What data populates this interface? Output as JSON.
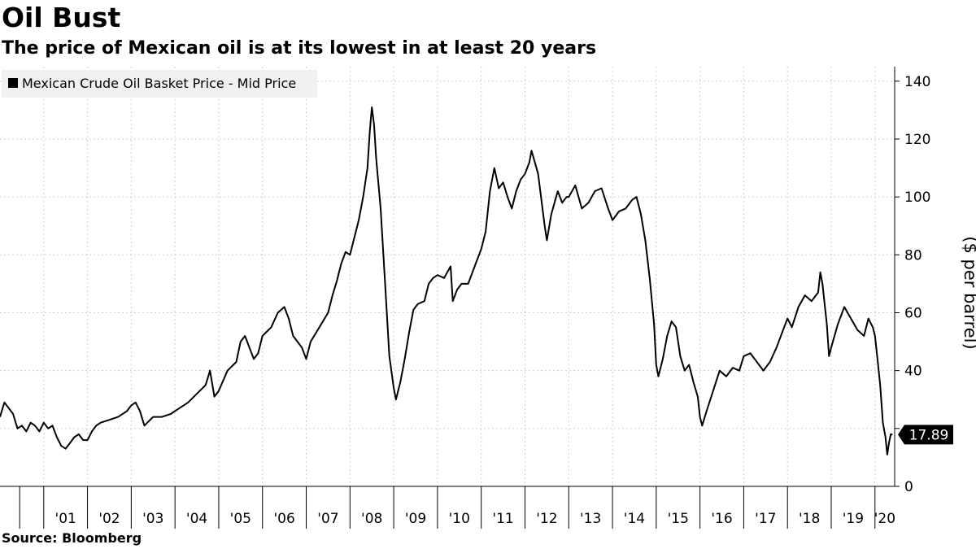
{
  "title": "Oil Bust",
  "subtitle": "The price of Mexican oil is at its lowest in at least 20 years",
  "source": "Source: Bloomberg",
  "chart_data": {
    "type": "line",
    "ylabel": "($ per barrel)",
    "ylim": [
      0,
      145
    ],
    "yticks": [
      0,
      40,
      60,
      80,
      100,
      120,
      140
    ],
    "xlim": [
      2000.0,
      2020.45
    ],
    "xticks": [
      {
        "label": "'01",
        "x": 2001.0
      },
      {
        "label": "'02",
        "x": 2002.0
      },
      {
        "label": "'03",
        "x": 2003.0
      },
      {
        "label": "'04",
        "x": 2004.0
      },
      {
        "label": "'05",
        "x": 2005.0
      },
      {
        "label": "'06",
        "x": 2006.0
      },
      {
        "label": "'07",
        "x": 2007.0
      },
      {
        "label": "'08",
        "x": 2008.0
      },
      {
        "label": "'09",
        "x": 2009.0
      },
      {
        "label": "'10",
        "x": 2010.0
      },
      {
        "label": "'11",
        "x": 2011.0
      },
      {
        "label": "'12",
        "x": 2012.0
      },
      {
        "label": "'13",
        "x": 2013.0
      },
      {
        "label": "'14",
        "x": 2014.0
      },
      {
        "label": "'15",
        "x": 2015.0
      },
      {
        "label": "'16",
        "x": 2016.0
      },
      {
        "label": "'17",
        "x": 2017.0
      },
      {
        "label": "'18",
        "x": 2018.0
      },
      {
        "label": "'19",
        "x": 2019.0
      },
      {
        "label": "'20",
        "x": 2020.0
      }
    ],
    "series": [
      {
        "name": "Mexican Crude Oil Basket Price - Mid Price",
        "color": "#000000",
        "last_value_label": "17.89",
        "points": [
          [
            2000.0,
            24
          ],
          [
            2000.1,
            29
          ],
          [
            2000.2,
            27
          ],
          [
            2000.3,
            25
          ],
          [
            2000.4,
            20
          ],
          [
            2000.5,
            21
          ],
          [
            2000.6,
            19
          ],
          [
            2000.7,
            22
          ],
          [
            2000.8,
            21
          ],
          [
            2000.9,
            19
          ],
          [
            2001.0,
            22
          ],
          [
            2001.1,
            20
          ],
          [
            2001.2,
            21
          ],
          [
            2001.3,
            17
          ],
          [
            2001.4,
            14
          ],
          [
            2001.5,
            13
          ],
          [
            2001.6,
            15
          ],
          [
            2001.7,
            17
          ],
          [
            2001.8,
            18
          ],
          [
            2001.9,
            16
          ],
          [
            2002.0,
            16
          ],
          [
            2002.1,
            19
          ],
          [
            2002.2,
            21
          ],
          [
            2002.3,
            22
          ],
          [
            2002.5,
            23
          ],
          [
            2002.7,
            24
          ],
          [
            2002.9,
            26
          ],
          [
            2003.0,
            28
          ],
          [
            2003.1,
            29
          ],
          [
            2003.2,
            26
          ],
          [
            2003.3,
            21
          ],
          [
            2003.5,
            24
          ],
          [
            2003.7,
            24
          ],
          [
            2003.9,
            25
          ],
          [
            2004.1,
            27
          ],
          [
            2004.3,
            29
          ],
          [
            2004.5,
            32
          ],
          [
            2004.7,
            35
          ],
          [
            2004.8,
            40
          ],
          [
            2004.9,
            31
          ],
          [
            2005.0,
            33
          ],
          [
            2005.2,
            40
          ],
          [
            2005.4,
            43
          ],
          [
            2005.5,
            50
          ],
          [
            2005.6,
            52
          ],
          [
            2005.7,
            48
          ],
          [
            2005.8,
            44
          ],
          [
            2005.9,
            46
          ],
          [
            2006.0,
            52
          ],
          [
            2006.2,
            55
          ],
          [
            2006.35,
            60
          ],
          [
            2006.5,
            62
          ],
          [
            2006.6,
            58
          ],
          [
            2006.7,
            52
          ],
          [
            2006.8,
            50
          ],
          [
            2006.9,
            48
          ],
          [
            2007.0,
            44
          ],
          [
            2007.1,
            50
          ],
          [
            2007.3,
            55
          ],
          [
            2007.5,
            60
          ],
          [
            2007.6,
            66
          ],
          [
            2007.7,
            71
          ],
          [
            2007.8,
            77
          ],
          [
            2007.9,
            81
          ],
          [
            2008.0,
            80
          ],
          [
            2008.1,
            86
          ],
          [
            2008.2,
            92
          ],
          [
            2008.3,
            100
          ],
          [
            2008.4,
            110
          ],
          [
            2008.45,
            122
          ],
          [
            2008.5,
            131
          ],
          [
            2008.55,
            125
          ],
          [
            2008.6,
            113
          ],
          [
            2008.7,
            96
          ],
          [
            2008.8,
            71
          ],
          [
            2008.9,
            45
          ],
          [
            2009.0,
            34
          ],
          [
            2009.05,
            30
          ],
          [
            2009.15,
            36
          ],
          [
            2009.25,
            44
          ],
          [
            2009.35,
            53
          ],
          [
            2009.45,
            61
          ],
          [
            2009.55,
            63
          ],
          [
            2009.7,
            64
          ],
          [
            2009.8,
            70
          ],
          [
            2009.9,
            72
          ],
          [
            2010.0,
            73
          ],
          [
            2010.15,
            72
          ],
          [
            2010.3,
            76
          ],
          [
            2010.35,
            64
          ],
          [
            2010.45,
            68
          ],
          [
            2010.55,
            70
          ],
          [
            2010.7,
            70
          ],
          [
            2010.85,
            76
          ],
          [
            2011.0,
            82
          ],
          [
            2011.1,
            88
          ],
          [
            2011.2,
            102
          ],
          [
            2011.3,
            110
          ],
          [
            2011.4,
            103
          ],
          [
            2011.5,
            105
          ],
          [
            2011.6,
            100
          ],
          [
            2011.7,
            96
          ],
          [
            2011.8,
            102
          ],
          [
            2011.9,
            106
          ],
          [
            2012.0,
            108
          ],
          [
            2012.1,
            112
          ],
          [
            2012.15,
            116
          ],
          [
            2012.3,
            108
          ],
          [
            2012.45,
            90
          ],
          [
            2012.5,
            85
          ],
          [
            2012.6,
            94
          ],
          [
            2012.75,
            102
          ],
          [
            2012.85,
            98
          ],
          [
            2012.95,
            100
          ],
          [
            2013.0,
            100
          ],
          [
            2013.15,
            104
          ],
          [
            2013.3,
            96
          ],
          [
            2013.45,
            98
          ],
          [
            2013.6,
            102
          ],
          [
            2013.75,
            103
          ],
          [
            2013.9,
            96
          ],
          [
            2014.0,
            92
          ],
          [
            2014.15,
            95
          ],
          [
            2014.3,
            96
          ],
          [
            2014.45,
            99
          ],
          [
            2014.55,
            100
          ],
          [
            2014.65,
            94
          ],
          [
            2014.75,
            85
          ],
          [
            2014.85,
            72
          ],
          [
            2014.95,
            56
          ],
          [
            2015.0,
            42
          ],
          [
            2015.05,
            38
          ],
          [
            2015.15,
            44
          ],
          [
            2015.25,
            52
          ],
          [
            2015.35,
            57
          ],
          [
            2015.45,
            55
          ],
          [
            2015.55,
            45
          ],
          [
            2015.65,
            40
          ],
          [
            2015.75,
            42
          ],
          [
            2015.85,
            36
          ],
          [
            2015.95,
            31
          ],
          [
            2016.0,
            24
          ],
          [
            2016.05,
            21
          ],
          [
            2016.15,
            26
          ],
          [
            2016.3,
            33
          ],
          [
            2016.45,
            40
          ],
          [
            2016.6,
            38
          ],
          [
            2016.75,
            41
          ],
          [
            2016.9,
            40
          ],
          [
            2017.0,
            45
          ],
          [
            2017.15,
            46
          ],
          [
            2017.3,
            43
          ],
          [
            2017.45,
            40
          ],
          [
            2017.6,
            43
          ],
          [
            2017.75,
            48
          ],
          [
            2017.9,
            54
          ],
          [
            2018.0,
            58
          ],
          [
            2018.1,
            55
          ],
          [
            2018.25,
            62
          ],
          [
            2018.4,
            66
          ],
          [
            2018.55,
            64
          ],
          [
            2018.7,
            67
          ],
          [
            2018.75,
            74
          ],
          [
            2018.8,
            70
          ],
          [
            2018.9,
            56
          ],
          [
            2018.95,
            45
          ],
          [
            2019.0,
            48
          ],
          [
            2019.15,
            56
          ],
          [
            2019.3,
            62
          ],
          [
            2019.45,
            58
          ],
          [
            2019.6,
            54
          ],
          [
            2019.75,
            52
          ],
          [
            2019.85,
            58
          ],
          [
            2019.95,
            55
          ],
          [
            2020.0,
            52
          ],
          [
            2020.05,
            45
          ],
          [
            2020.12,
            35
          ],
          [
            2020.18,
            22
          ],
          [
            2020.24,
            17
          ],
          [
            2020.28,
            11
          ],
          [
            2020.32,
            15
          ],
          [
            2020.36,
            18
          ],
          [
            2020.4,
            17.89
          ]
        ]
      }
    ]
  }
}
